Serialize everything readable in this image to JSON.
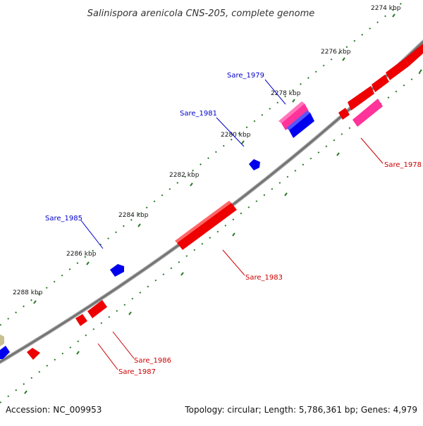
{
  "title": "Salinispora arenicola CNS-205, complete genome",
  "footer": {
    "accession": "Accession: NC_009953",
    "topology": "Topology: circular; Length: 5,786,361 bp; Genes: 4,979"
  },
  "ticks": [
    {
      "label": "2274 kbp"
    },
    {
      "label": "2276 kbp"
    },
    {
      "label": "2278 kbp"
    },
    {
      "label": "2280 kbp"
    },
    {
      "label": "2282 kbp"
    },
    {
      "label": "2284 kbp"
    },
    {
      "label": "2286 kbp"
    },
    {
      "label": "2288 kbp"
    }
  ],
  "gene_labels": [
    {
      "text": "Sare_1979",
      "color": "#0000cc"
    },
    {
      "text": "Sare_1981",
      "color": "#0000cc"
    },
    {
      "text": "Sare_1985",
      "color": "#0000cc"
    },
    {
      "text": "Sare_1978",
      "color": "#cc0000"
    },
    {
      "text": "Sare_1983",
      "color": "#cc0000"
    },
    {
      "text": "Sare_1986",
      "color": "#cc0000"
    },
    {
      "text": "Sare_1987",
      "color": "#cc0000"
    }
  ],
  "colors": {
    "backbone": "#808080",
    "tick_marks": "#2a7a2a",
    "forward_cds": "#ff0000",
    "reverse_cds": "#0000ff",
    "rna_gene": "#ff3399",
    "other_feature": "#c8c090"
  }
}
